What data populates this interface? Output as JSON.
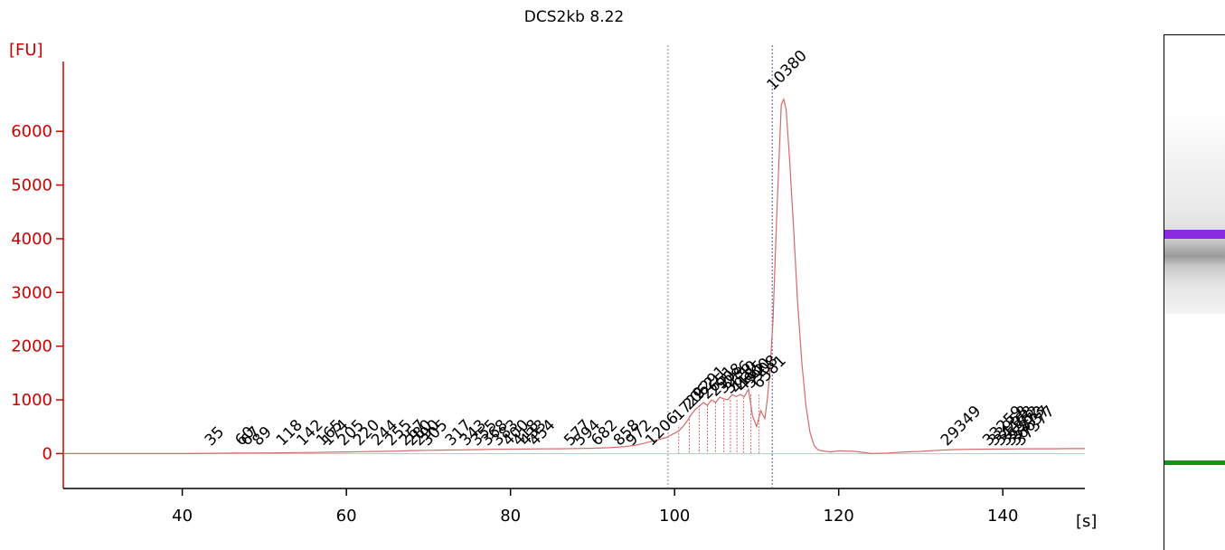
{
  "chart_data": {
    "type": "line",
    "title": "DCS2kb 8.22",
    "ylabel": "[FU]",
    "xlabel": "[s]",
    "xlim": [
      25.5,
      150
    ],
    "ylim": [
      -650,
      7300
    ],
    "x_ticks": [
      40,
      60,
      80,
      100,
      120,
      140
    ],
    "y_ticks": [
      0,
      1000,
      2000,
      3000,
      4000,
      5000,
      6000
    ],
    "grid": false,
    "colors": {
      "trace": "#d46a6a",
      "y_axis": "#cc0000",
      "lower_marker": "#1a8f1a",
      "upper_marker": "#8a2be2",
      "peak_label": "#000000",
      "baseline": "#2e8b57"
    },
    "series": [
      {
        "x": [
          25.5,
          40,
          44,
          46,
          48,
          50,
          52,
          54,
          56,
          58,
          60,
          62,
          64,
          66,
          68,
          70,
          72,
          74,
          76,
          78,
          80,
          82,
          84,
          86,
          88,
          90,
          92,
          94,
          95,
          96,
          97,
          98,
          99,
          100,
          100.5,
          101,
          101.5,
          102,
          102.5,
          103,
          103.5,
          104,
          104.5,
          105,
          105.5,
          106,
          106.5,
          107,
          107.5,
          108,
          108.5,
          109,
          109.5,
          110,
          110.5,
          111,
          111.3,
          111.6,
          112,
          112.3,
          112.6,
          113,
          113.3,
          113.6,
          114,
          114.5,
          115,
          115.5,
          116,
          116.5,
          117,
          117.5,
          118,
          119,
          120,
          122,
          124,
          126,
          128,
          130,
          132,
          134,
          136,
          138,
          140,
          142,
          144,
          146,
          148,
          150
        ],
        "y": [
          0,
          0,
          5,
          8,
          10,
          12,
          14,
          18,
          20,
          25,
          30,
          35,
          40,
          45,
          55,
          60,
          65,
          70,
          75,
          80,
          82,
          85,
          88,
          90,
          95,
          100,
          110,
          130,
          150,
          180,
          220,
          260,
          300,
          380,
          420,
          500,
          600,
          720,
          820,
          880,
          950,
          900,
          1000,
          950,
          1050,
          1020,
          1000,
          1100,
          1060,
          1100,
          1060,
          1200,
          700,
          500,
          800,
          650,
          1000,
          1500,
          2500,
          3800,
          5000,
          6500,
          6600,
          6400,
          5500,
          4200,
          2800,
          1700,
          900,
          400,
          150,
          70,
          50,
          30,
          50,
          40,
          0,
          10,
          30,
          40,
          60,
          75,
          80,
          82,
          85,
          88,
          90,
          90,
          92,
          92
        ]
      }
    ],
    "markers": [
      {
        "x": 99.2,
        "color": "#8a8a8a"
      },
      {
        "x": 111.9,
        "color": "#5a5aa8"
      }
    ],
    "peak_labels": [
      {
        "text": "35",
        "x": 43.5,
        "y": 30,
        "color": "#1a8f1a"
      },
      {
        "text": "60",
        "x": 47.2,
        "y": 30
      },
      {
        "text": "67",
        "x": 47.9,
        "y": 30
      },
      {
        "text": "89",
        "x": 49.3,
        "y": 30
      },
      {
        "text": "118",
        "x": 52.2,
        "y": 30
      },
      {
        "text": "142",
        "x": 54.7,
        "y": 30
      },
      {
        "text": "165",
        "x": 57.1,
        "y": 30
      },
      {
        "text": "174",
        "x": 57.8,
        "y": 30
      },
      {
        "text": "205",
        "x": 59.7,
        "y": 30
      },
      {
        "text": "220",
        "x": 61.6,
        "y": 30
      },
      {
        "text": "244",
        "x": 63.8,
        "y": 30
      },
      {
        "text": "255",
        "x": 65.5,
        "y": 30
      },
      {
        "text": "267",
        "x": 67.2,
        "y": 30
      },
      {
        "text": "280",
        "x": 68.0,
        "y": 30
      },
      {
        "text": "290",
        "x": 68.9,
        "y": 30
      },
      {
        "text": "305",
        "x": 69.9,
        "y": 30
      },
      {
        "text": "317",
        "x": 72.8,
        "y": 30
      },
      {
        "text": "343",
        "x": 74.6,
        "y": 30
      },
      {
        "text": "355",
        "x": 75.9,
        "y": 30
      },
      {
        "text": "368",
        "x": 77.2,
        "y": 30
      },
      {
        "text": "383",
        "x": 78.5,
        "y": 30
      },
      {
        "text": "400",
        "x": 79.8,
        "y": 30
      },
      {
        "text": "418",
        "x": 81.0,
        "y": 30
      },
      {
        "text": "433",
        "x": 81.9,
        "y": 30
      },
      {
        "text": "454",
        "x": 83.0,
        "y": 30
      },
      {
        "text": "577",
        "x": 87.3,
        "y": 30
      },
      {
        "text": "594",
        "x": 88.5,
        "y": 30
      },
      {
        "text": "682",
        "x": 90.6,
        "y": 30
      },
      {
        "text": "858",
        "x": 93.3,
        "y": 30
      },
      {
        "text": "972",
        "x": 94.8,
        "y": 30
      },
      {
        "text": "1206",
        "x": 97.2,
        "y": 30
      },
      {
        "text": "1729",
        "x": 100.5,
        "y": 500
      },
      {
        "text": "2062",
        "x": 101.8,
        "y": 700
      },
      {
        "text": "2291",
        "x": 103.0,
        "y": 900
      },
      {
        "text": "2651",
        "x": 104.0,
        "y": 900
      },
      {
        "text": "2908",
        "x": 105.0,
        "y": 950
      },
      {
        "text": "3286",
        "x": 106.0,
        "y": 1000
      },
      {
        "text": "3630",
        "x": 106.8,
        "y": 1000
      },
      {
        "text": "4185",
        "x": 107.6,
        "y": 1000
      },
      {
        "text": "4900",
        "x": 108.4,
        "y": 1050
      },
      {
        "text": "5908",
        "x": 109.3,
        "y": 1100
      },
      {
        "text": "6581",
        "x": 110.3,
        "y": 1100
      },
      {
        "text": "10380",
        "x": 112.0,
        "y": 6650,
        "color": "#8a2be2"
      },
      {
        "text": "29349",
        "x": 133.2,
        "y": 30
      },
      {
        "text": "33259",
        "x": 138.3,
        "y": 30
      },
      {
        "text": "33958",
        "x": 139.0,
        "y": 30
      },
      {
        "text": "34468",
        "x": 139.7,
        "y": 30
      },
      {
        "text": "35362",
        "x": 140.4,
        "y": 30
      },
      {
        "text": "35873",
        "x": 141.0,
        "y": 30
      },
      {
        "text": "36637",
        "x": 141.6,
        "y": 30
      },
      {
        "text": "37377",
        "x": 142.2,
        "y": 30
      }
    ]
  },
  "gel": {
    "band_colors": [
      "#8a2be2",
      "#1a8f1a"
    ]
  }
}
